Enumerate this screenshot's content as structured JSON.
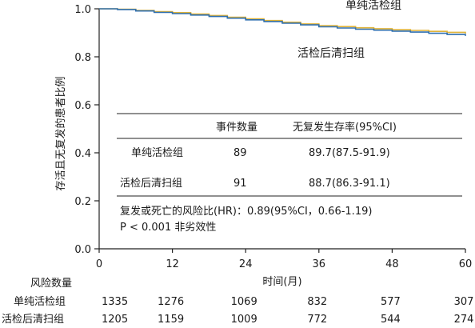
{
  "chart_data": {
    "type": "line",
    "ylabel": "存活且无复发的患者比例",
    "xlabel": "时间(月)",
    "xlim": [
      0,
      60
    ],
    "ylim": [
      0.0,
      1.0
    ],
    "x_ticks": [
      0,
      12,
      24,
      36,
      48,
      60
    ],
    "y_ticks": [
      "0.0",
      "0.2",
      "0.4",
      "0.6",
      "0.8",
      "1.0"
    ],
    "series": [
      {
        "name": "单纯活检组",
        "color": "#e0b43a",
        "x": [
          0,
          3,
          6,
          9,
          12,
          15,
          18,
          21,
          24,
          27,
          30,
          33,
          36,
          39,
          42,
          45,
          48,
          51,
          54,
          57,
          60
        ],
        "y": [
          1.0,
          0.998,
          0.993,
          0.988,
          0.984,
          0.978,
          0.972,
          0.965,
          0.958,
          0.951,
          0.944,
          0.937,
          0.93,
          0.926,
          0.921,
          0.917,
          0.913,
          0.91,
          0.906,
          0.902,
          0.897
        ]
      },
      {
        "name": "活检后清扫组",
        "color": "#2f6fb0",
        "x": [
          0,
          3,
          6,
          9,
          12,
          15,
          18,
          21,
          24,
          27,
          30,
          33,
          36,
          39,
          42,
          45,
          48,
          51,
          54,
          57,
          60
        ],
        "y": [
          1.0,
          0.997,
          0.991,
          0.985,
          0.98,
          0.974,
          0.968,
          0.961,
          0.954,
          0.947,
          0.94,
          0.933,
          0.925,
          0.92,
          0.915,
          0.911,
          0.907,
          0.903,
          0.898,
          0.893,
          0.887
        ]
      }
    ],
    "inset_table": {
      "headers": [
        "",
        "事件数量",
        "无复发生存率(95%CI)"
      ],
      "rows": [
        [
          "单纯活检组",
          "89",
          "89.7(87.5-91.9)"
        ],
        [
          "活检后清扫组",
          "91",
          "88.7(86.3-91.1)"
        ]
      ],
      "note_line1": "复发或死亡的风险比(HR)：0.89(95%CI，0.66-1.19)",
      "note_line2": "P < 0.001 非劣效性"
    },
    "risk_table": {
      "title": "风险数量",
      "rows": [
        {
          "label": "单纯活检组",
          "values": [
            "1335",
            "1276",
            "1069",
            "832",
            "577",
            "307"
          ]
        },
        {
          "label": "活检后清扫组",
          "values": [
            "1205",
            "1159",
            "1009",
            "772",
            "544",
            "274"
          ]
        }
      ]
    }
  }
}
